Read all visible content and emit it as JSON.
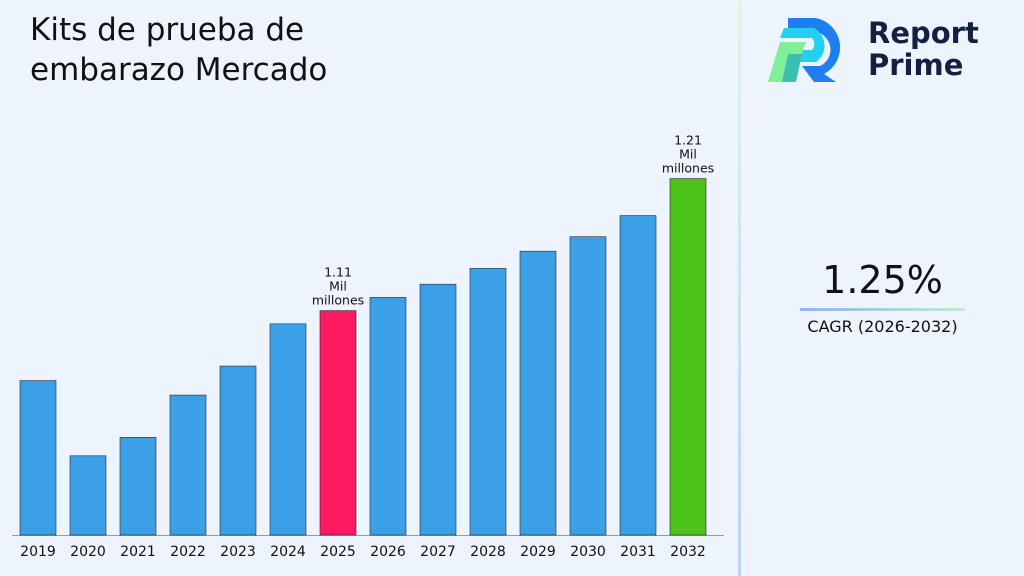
{
  "title": "Kits de prueba de embarazo Mercado",
  "brand": {
    "line1": "Report",
    "line2": "Prime"
  },
  "cagr": {
    "value": "1.25%",
    "label": "CAGR (2026-2032)"
  },
  "colors": {
    "default": "#3ba0e8",
    "highlight_2025": "#fc1a63",
    "highlight_2032": "#4cc21a"
  },
  "chart_data": {
    "type": "bar",
    "title": "Kits de prueba de embarazo Mercado",
    "categories": [
      "2019",
      "2020",
      "2021",
      "2022",
      "2023",
      "2024",
      "2025",
      "2026",
      "2027",
      "2028",
      "2029",
      "2030",
      "2031",
      "2032"
    ],
    "values": [
      1.057,
      1.0,
      1.014,
      1.046,
      1.068,
      1.1,
      1.11,
      1.12,
      1.13,
      1.142,
      1.155,
      1.166,
      1.182,
      1.21
    ],
    "unit": "Mil millones",
    "ylim": [
      0.94,
      1.24
    ],
    "grid": false,
    "annotations": [
      {
        "category": "2025",
        "lines": [
          "1.11",
          "Mil",
          "millones"
        ]
      },
      {
        "category": "2032",
        "lines": [
          "1.21",
          "Mil",
          "millones"
        ]
      }
    ]
  }
}
